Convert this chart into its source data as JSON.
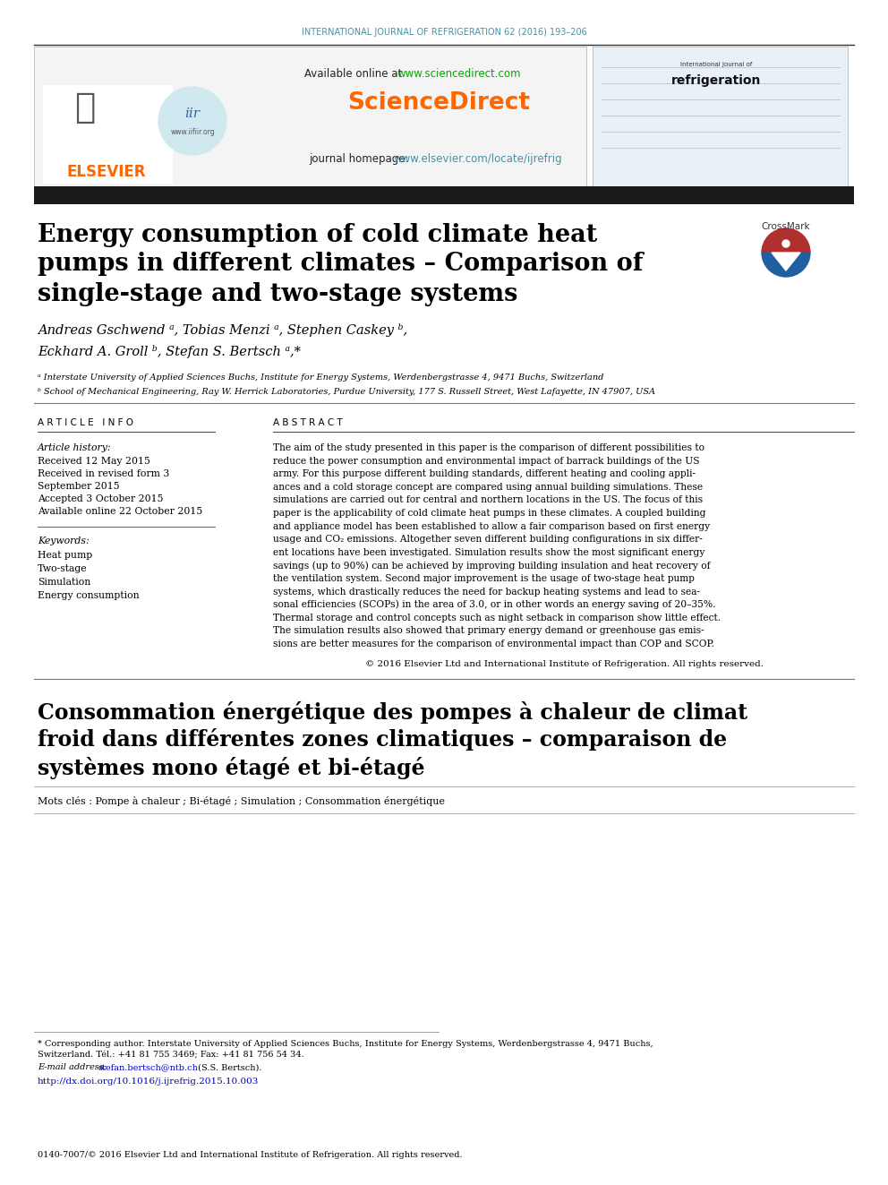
{
  "journal_header": "INTERNATIONAL JOURNAL OF REFRIGERATION 62 (2016) 193–206",
  "journal_header_color": "#4a90a4",
  "available_online_text": "Available online at ",
  "sciencedirect_url": "www.sciencedirect.com",
  "sciencedirect_url_color": "#00aa00",
  "sciencedirect_brand": "ScienceDirect",
  "sciencedirect_brand_color": "#ff6600",
  "journal_homepage_text": "journal homepage: ",
  "journal_homepage_url": "www.elsevier.com/locate/ijrefrig",
  "journal_homepage_url_color": "#4a90a4",
  "elsevier_text": "ELSEVIER",
  "elsevier_color": "#ff6600",
  "paper_title_line1": "Energy consumption of cold climate heat",
  "paper_title_line2": "pumps in different climates – Comparison of",
  "paper_title_line3": "single-stage and two-stage systems",
  "authors": "Andreas Gschwend ᵃ, Tobias Menzi ᵃ, Stephen Caskey ᵇ,",
  "authors2": "Eckhard A. Groll ᵇ, Stefan S. Bertsch ᵃ,*",
  "affil_a": "ᵃ Interstate University of Applied Sciences Buchs, Institute for Energy Systems, Werdenbergstrasse 4, 9471 Buchs, Switzerland",
  "affil_b": "ᵇ School of Mechanical Engineering, Ray W. Herrick Laboratories, Purdue University, 177 S. Russell Street, West Lafayette, IN 47907, USA",
  "article_info_header": "A R T I C L E   I N F O",
  "article_history_label": "Article history:",
  "received1": "Received 12 May 2015",
  "received2": "Received in revised form 3",
  "september": "September 2015",
  "accepted": "Accepted 3 October 2015",
  "available": "Available online 22 October 2015",
  "keywords_label": "Keywords:",
  "keywords": [
    "Heat pump",
    "Two-stage",
    "Simulation",
    "Energy consumption"
  ],
  "abstract_header": "A B S T R A C T",
  "abstract_lines": [
    "The aim of the study presented in this paper is the comparison of different possibilities to",
    "reduce the power consumption and environmental impact of barrack buildings of the US",
    "army. For this purpose different building standards, different heating and cooling appli-",
    "ances and a cold storage concept are compared using annual building simulations. These",
    "simulations are carried out for central and northern locations in the US. The focus of this",
    "paper is the applicability of cold climate heat pumps in these climates. A coupled building",
    "and appliance model has been established to allow a fair comparison based on first energy",
    "usage and CO₂ emissions. Altogether seven different building configurations in six differ-",
    "ent locations have been investigated. Simulation results show the most significant energy",
    "savings (up to 90%) can be achieved by improving building insulation and heat recovery of",
    "the ventilation system. Second major improvement is the usage of two-stage heat pump",
    "systems, which drastically reduces the need for backup heating systems and lead to sea-",
    "sonal efficiencies (SCOPs) in the area of 3.0, or in other words an energy saving of 20–35%.",
    "Thermal storage and control concepts such as night setback in comparison show little effect.",
    "The simulation results also showed that primary energy demand or greenhouse gas emis-",
    "sions are better measures for the comparison of environmental impact than COP and SCOP."
  ],
  "abstract_copyright": "© 2016 Elsevier Ltd and International Institute of Refrigeration. All rights reserved.",
  "french_title_line1": "Consommation énergétique des pompes à chaleur de climat",
  "french_title_line2": "froid dans différentes zones climatiques – comparaison de",
  "french_title_line3": "systèmes mono étagé et bi-étagé",
  "french_keywords": "Mots clés : Pompe à chaleur ; Bi-étagé ; Simulation ; Consommation énergétique",
  "footnote_corresponding": "* Corresponding author. Interstate University of Applied Sciences Buchs, Institute for Energy Systems, Werdenbergstrasse 4, 9471 Buchs,",
  "footnote_corresponding2": "Switzerland. Tél.: +41 81 755 3469; Fax: +41 81 756 54 34.",
  "footnote_email_label": "E-mail address: ",
  "footnote_email": "stefan.bertsch@ntb.ch",
  "footnote_email_color": "#0000cc",
  "footnote_email_suffix": " (S.S. Bertsch).",
  "footnote_doi_text": "http://dx.doi.org/10.1016/j.ijrefrig.2015.10.003",
  "footnote_doi_color": "#0000cc",
  "footnote_issn": "0140-7007/© 2016 Elsevier Ltd and International Institute of Refrigeration. All rights reserved.",
  "bg_color": "#ffffff",
  "black_bar_color": "#1a1a1a",
  "text_color": "#000000"
}
